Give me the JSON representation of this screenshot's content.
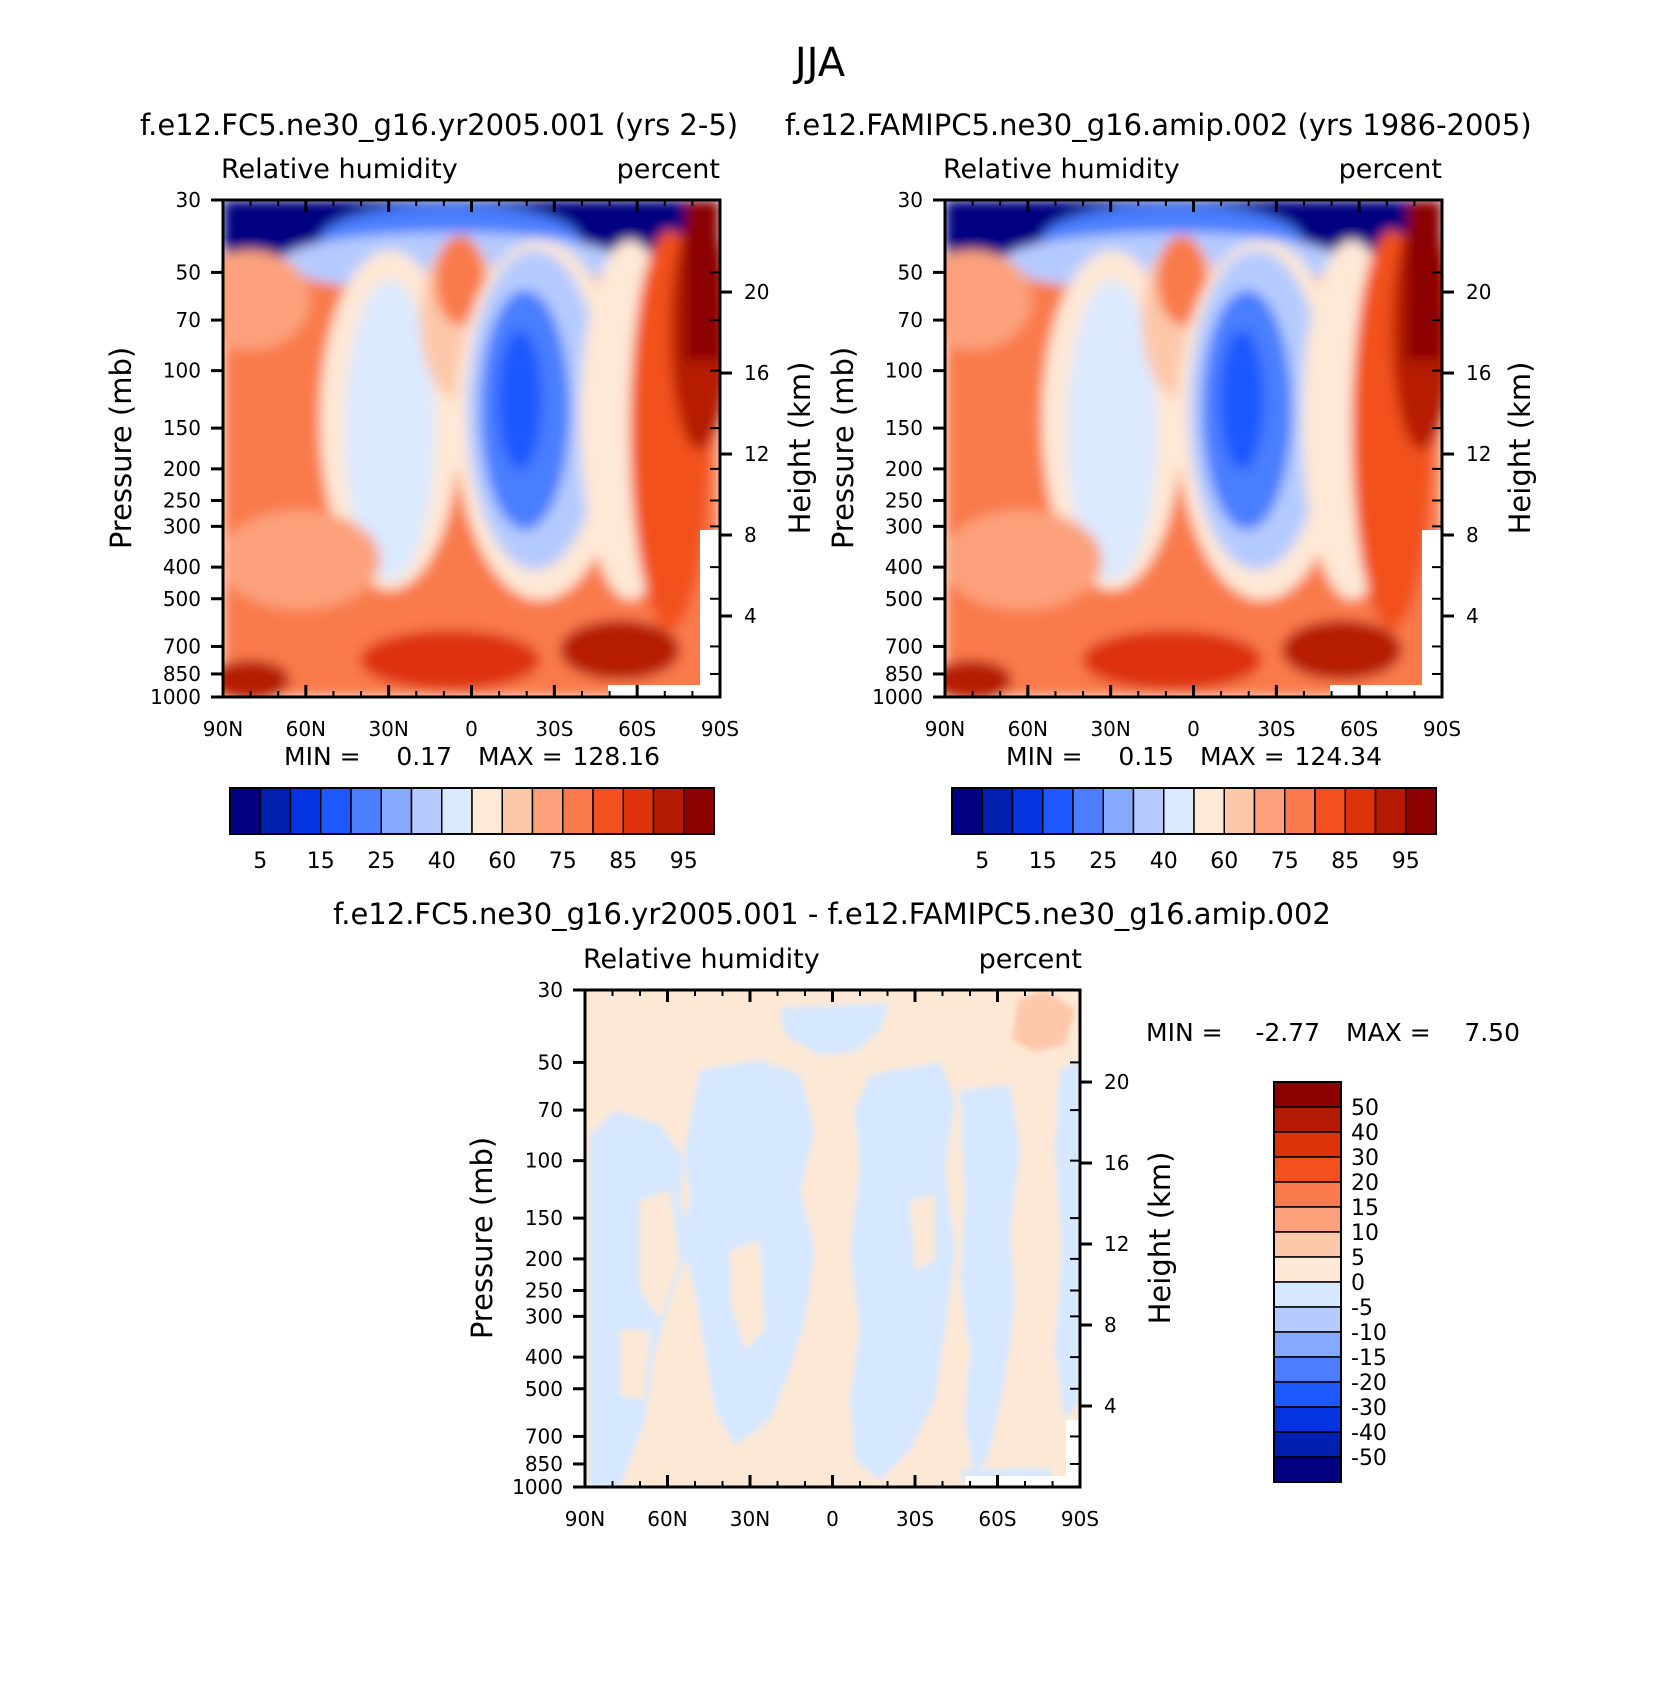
{
  "figure_title": "JJA",
  "panel_palette": [
    "#000080",
    "#0020b0",
    "#0535e0",
    "#1e58ff",
    "#4a7eff",
    "#86a8ff",
    "#b5cbff",
    "#dbe9ff",
    "#fee8d6",
    "#fdc7aa",
    "#fca17c",
    "#f97a4c",
    "#f2511f",
    "#dd330a",
    "#b51a04",
    "#8b0000"
  ],
  "diff_palette": [
    "#000080",
    "#0020b0",
    "#0535e0",
    "#1e58ff",
    "#4a7eff",
    "#86a8ff",
    "#b5cbff",
    "#d6e8ff",
    "#fde8d6",
    "#fdc7aa",
    "#fca17c",
    "#f97a4c",
    "#f2511f",
    "#dd330a",
    "#b51a04",
    "#8b0000"
  ],
  "panels": [
    {
      "title": "f.e12.FC5.ne30_g16.yr2005.001 (yrs 2-5)",
      "left_label": "Relative humidity",
      "right_label": "percent",
      "min_label": "MIN =",
      "min_value": "0.17",
      "max_label": "MAX =",
      "max_value": "128.16"
    },
    {
      "title": "f.e12.FAMIPC5.ne30_g16.amip.002 (yrs 1986-2005)",
      "left_label": "Relative humidity",
      "right_label": "percent",
      "min_label": "MIN =",
      "min_value": "0.15",
      "max_label": "MAX =",
      "max_value": "124.34"
    },
    {
      "title": "f.e12.FC5.ne30_g16.yr2005.001 - f.e12.FAMIPC5.ne30_g16.amip.002",
      "left_label": "Relative humidity",
      "right_label": "percent",
      "min_label": "MIN =",
      "min_value": "-2.77",
      "max_label": "MAX =",
      "max_value": "7.50"
    }
  ],
  "chart_data": [
    {
      "type": "heatmap",
      "panel": 0,
      "ylabel": "Pressure (mb)",
      "y2label": "Height (km)",
      "x_ticks": [
        "90N",
        "60N",
        "30N",
        "0",
        "30S",
        "60S",
        "90S"
      ],
      "y_ticks": [
        30,
        50,
        70,
        100,
        150,
        200,
        250,
        300,
        400,
        500,
        700,
        850,
        1000
      ],
      "y2_ticks": [
        20,
        16,
        12,
        8,
        4
      ],
      "colorbar_labels": [
        "5",
        "15",
        "25",
        "40",
        "60",
        "75",
        "85",
        "95"
      ],
      "ylim": [
        30,
        1000
      ]
    },
    {
      "type": "heatmap",
      "panel": 1,
      "ylabel": "Pressure (mb)",
      "y2label": "Height (km)",
      "x_ticks": [
        "90N",
        "60N",
        "30N",
        "0",
        "30S",
        "60S",
        "90S"
      ],
      "y_ticks": [
        30,
        50,
        70,
        100,
        150,
        200,
        250,
        300,
        400,
        500,
        700,
        850,
        1000
      ],
      "y2_ticks": [
        20,
        16,
        12,
        8,
        4
      ],
      "colorbar_labels": [
        "5",
        "15",
        "25",
        "40",
        "60",
        "75",
        "85",
        "95"
      ],
      "ylim": [
        30,
        1000
      ]
    },
    {
      "type": "heatmap",
      "panel": 2,
      "ylabel": "Pressure (mb)",
      "y2label": "Height (km)",
      "x_ticks": [
        "90N",
        "60N",
        "30N",
        "0",
        "30S",
        "60S",
        "90S"
      ],
      "y_ticks": [
        30,
        50,
        70,
        100,
        150,
        200,
        250,
        300,
        400,
        500,
        700,
        850,
        1000
      ],
      "y2_ticks": [
        20,
        16,
        12,
        8,
        4
      ],
      "colorbar_labels": [
        "50",
        "40",
        "30",
        "20",
        "15",
        "10",
        "5",
        "0",
        "-5",
        "-10",
        "-15",
        "-20",
        "-30",
        "-40",
        "-50"
      ],
      "ylim": [
        30,
        1000
      ]
    }
  ]
}
